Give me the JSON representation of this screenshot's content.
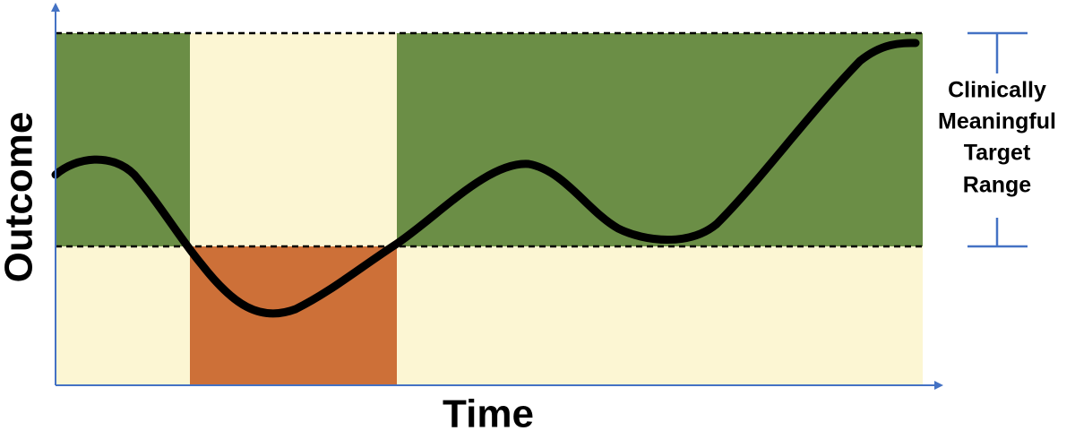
{
  "y_axis_label": "Outcome",
  "x_axis_label": "Time",
  "range_label": {
    "lines": [
      "Clinically",
      "Meaningful",
      "Target",
      "Range"
    ]
  }
}
